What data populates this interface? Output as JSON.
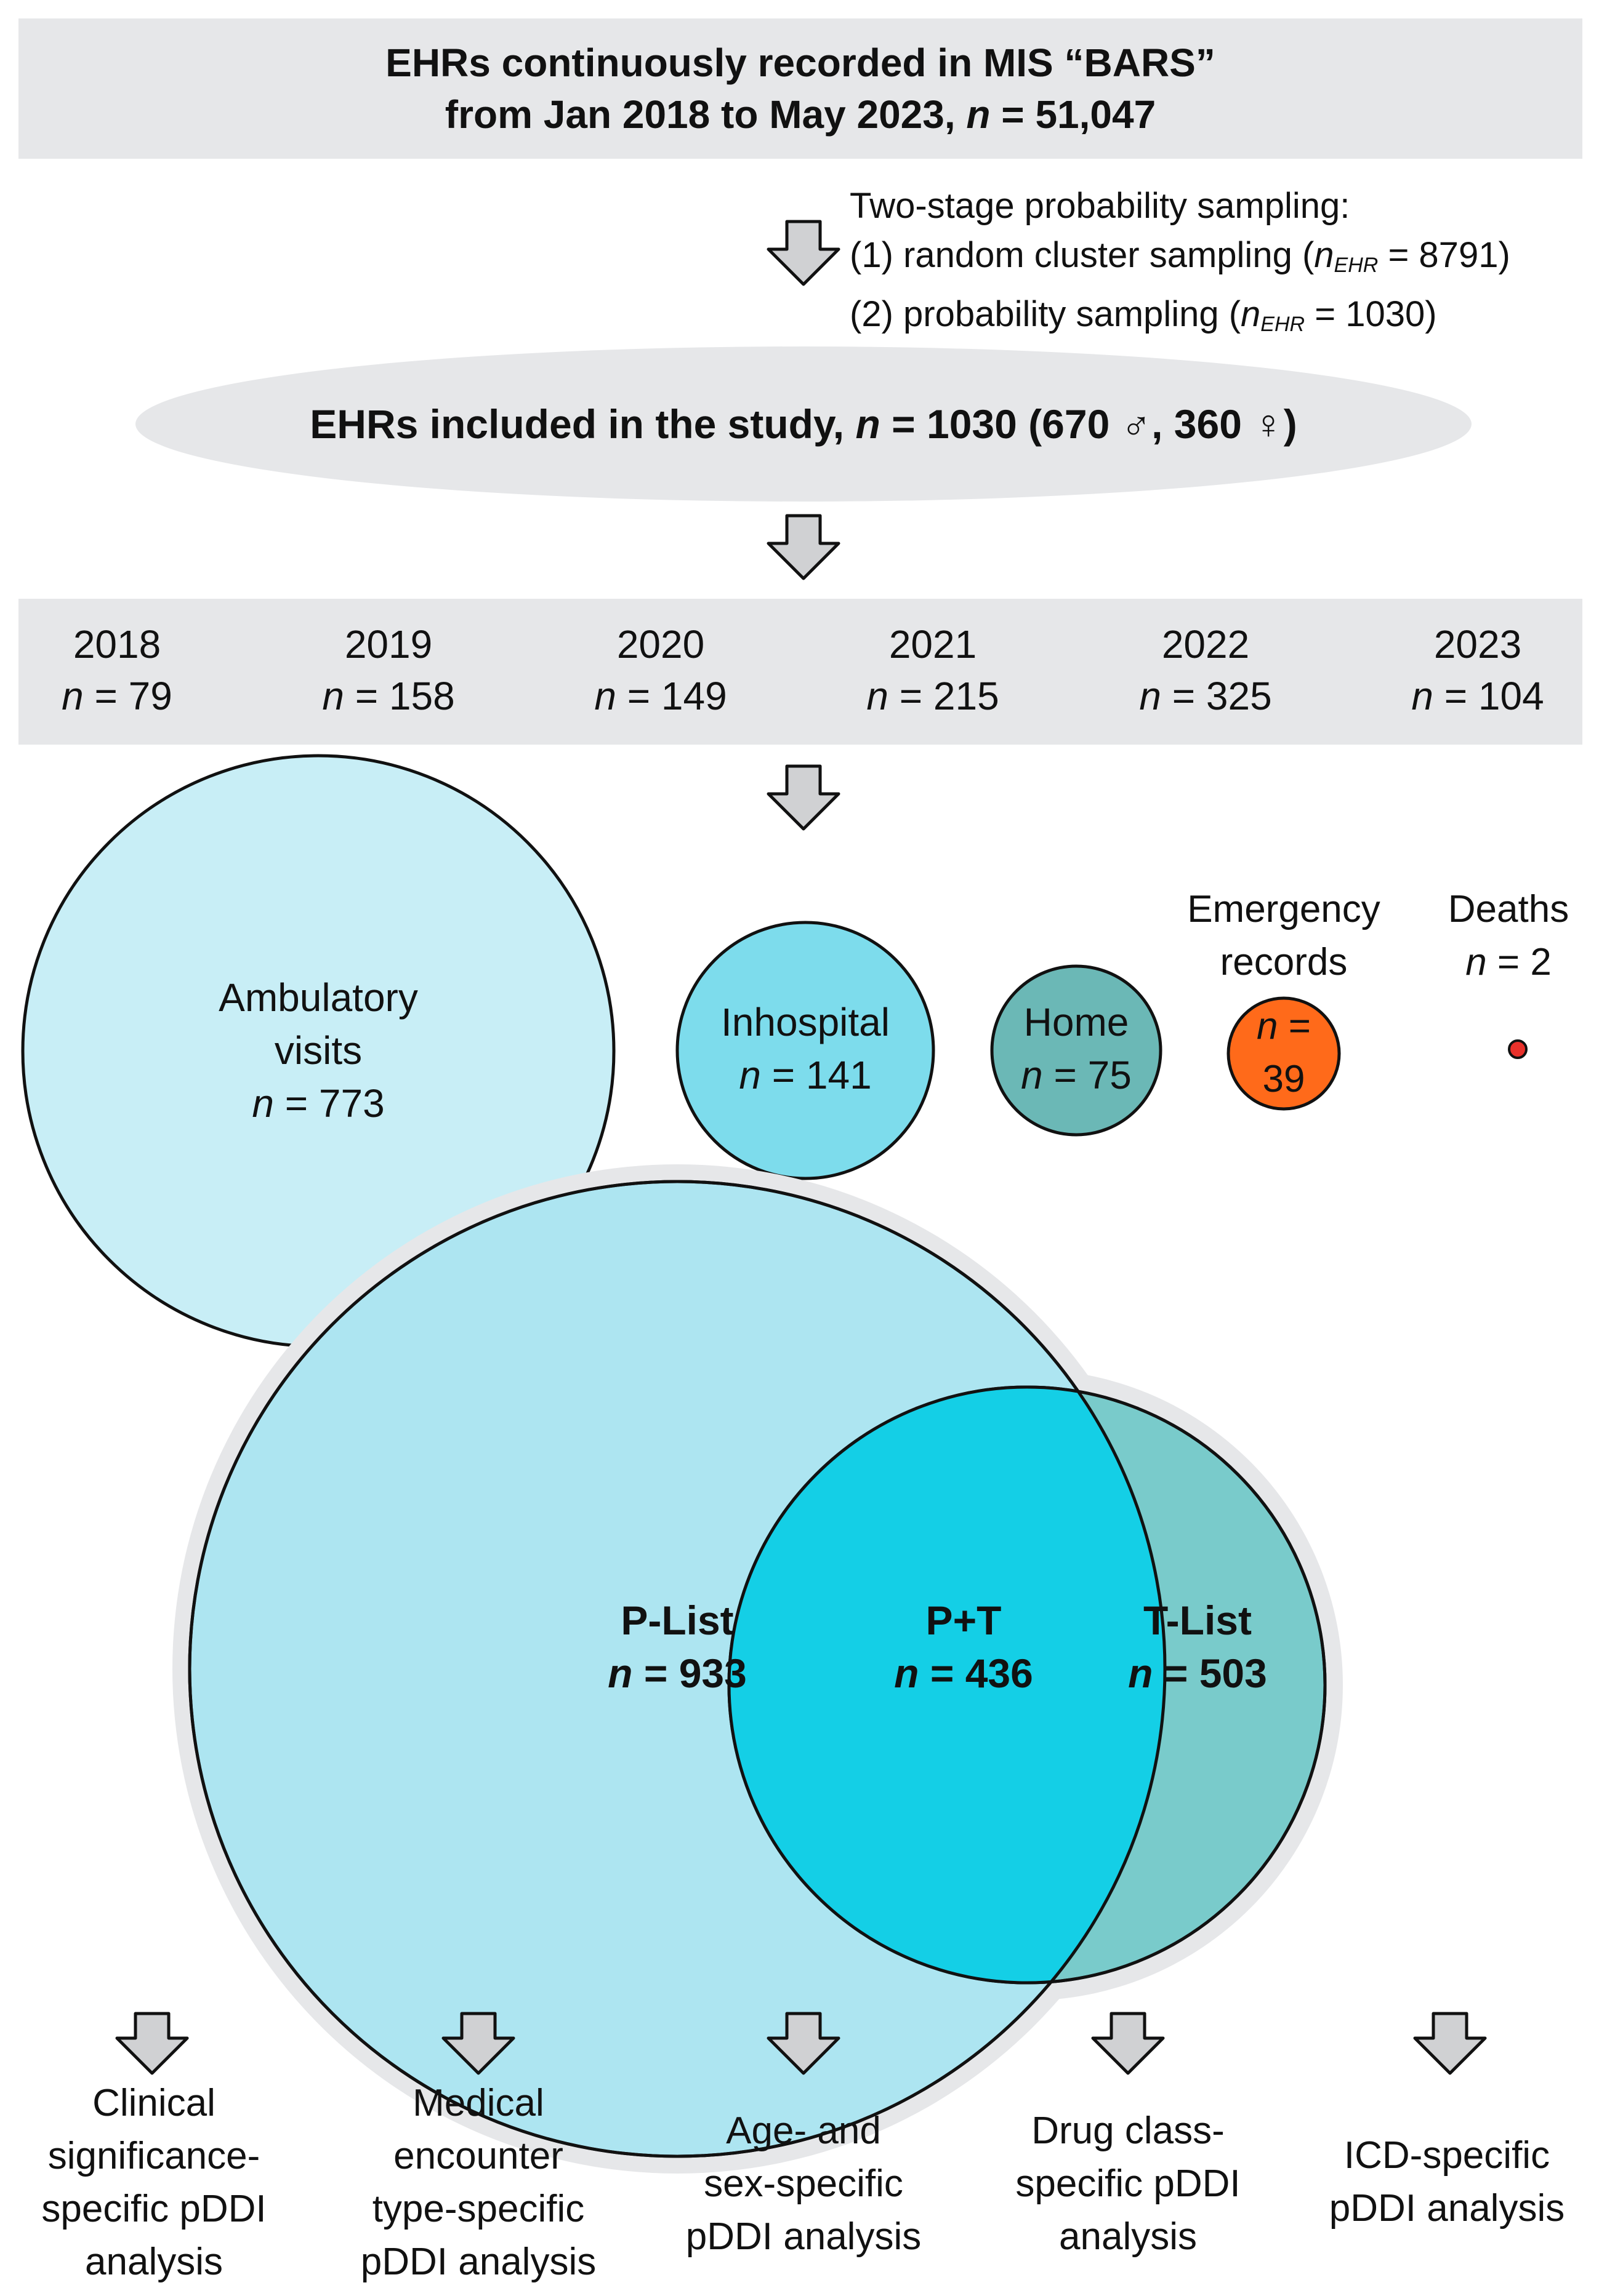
{
  "header": {
    "line1": "EHRs continuously recorded in MIS “BARS”",
    "line2_prefix": "from Jan 2018 to May 2023, ",
    "n_symbol": "n",
    "line2_value": " = 51,047"
  },
  "sampling": {
    "title": "Two-stage probability sampling:",
    "stage1_prefix": "(1) random cluster sampling (",
    "stage1_n": "n",
    "stage1_sub": "EHR",
    "stage1_value": " = 8791)",
    "stage2_prefix": "(2) probability sampling (",
    "stage2_n": "n",
    "stage2_sub": "EHR",
    "stage2_value": " = 1030)"
  },
  "included": {
    "prefix": "EHRs included in the study, ",
    "n_symbol": "n",
    "value": " = 1030 (670 ♂, 360 ♀)"
  },
  "years": [
    {
      "year": "2018",
      "n_symbol": "n",
      "value": " = 79",
      "count": 79
    },
    {
      "year": "2019",
      "n_symbol": "n",
      "value": " = 158",
      "count": 158
    },
    {
      "year": "2020",
      "n_symbol": "n",
      "value": " = 149",
      "count": 149
    },
    {
      "year": "2021",
      "n_symbol": "n",
      "value": " = 215",
      "count": 215
    },
    {
      "year": "2022",
      "n_symbol": "n",
      "value": " = 325",
      "count": 325
    },
    {
      "year": "2023",
      "n_symbol": "n",
      "value": " = 104",
      "count": 104
    }
  ],
  "encounters": {
    "ambulatory": {
      "line1": "Ambulatory",
      "line2": "visits",
      "n_symbol": "n",
      "value": " = 773",
      "count": 773,
      "color": "#c8eef6"
    },
    "inhospital": {
      "line1": "Inhospital",
      "n_symbol": "n",
      "value": " = 141",
      "count": 141,
      "color": "#7ddcec"
    },
    "home": {
      "line1": "Home",
      "n_symbol": "n",
      "value": " = 75",
      "count": 75,
      "color": "#6bb8b6"
    },
    "emergency": {
      "title1": "Emergency",
      "title2": "records",
      "n_symbol": "n",
      "eq": " =",
      "value": "39",
      "count": 39,
      "color": "#ff6a1a"
    },
    "deaths": {
      "title": "Deaths",
      "n_symbol": "n",
      "value": " = 2",
      "count": 2,
      "color": "#e8312b"
    }
  },
  "venn": {
    "p_list": {
      "label": "P-List",
      "n_symbol": "n",
      "value": " = 933",
      "count": 933,
      "color": "#ade5f1"
    },
    "overlap": {
      "label": "P+T",
      "n_symbol": "n",
      "value": " = 436",
      "count": 436,
      "color": "#14cfe6"
    },
    "t_list": {
      "label": "T-List",
      "n_symbol": "n",
      "value": " = 503",
      "count": 503,
      "color": "#79cbcb"
    }
  },
  "analyses": [
    {
      "lines": [
        "Clinical",
        "significance-",
        "specific pDDI",
        "analysis"
      ]
    },
    {
      "lines": [
        "Medical",
        "encounter",
        "type-specific",
        "pDDI analysis"
      ]
    },
    {
      "lines": [
        "Age- and",
        "sex-specific",
        "pDDI analysis"
      ]
    },
    {
      "lines": [
        "Drug class-",
        "specific pDDI",
        "analysis"
      ]
    },
    {
      "lines": [
        "ICD-specific",
        "pDDI analysis"
      ]
    }
  ],
  "colors": {
    "panel": "#e6e7e9",
    "arrow_fill": "#d0d1d3",
    "stroke": "#111111"
  }
}
